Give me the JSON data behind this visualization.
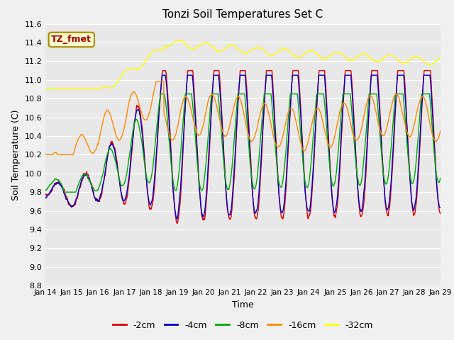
{
  "title": "Tonzi Soil Temperatures Set C",
  "xlabel": "Time",
  "ylabel": "Soil Temperature (C)",
  "ylim": [
    8.8,
    11.6
  ],
  "yticks": [
    8.8,
    9.0,
    9.2,
    9.4,
    9.6,
    9.8,
    10.0,
    10.2,
    10.4,
    10.6,
    10.8,
    11.0,
    11.2,
    11.4,
    11.6
  ],
  "xtick_labels": [
    "Jan 14",
    "Jan 15",
    "Jan 16",
    "Jan 17",
    "Jan 18",
    "Jan 19",
    "Jan 20",
    "Jan 21",
    "Jan 22",
    "Jan 23",
    "Jan 24",
    "Jan 25",
    "Jan 26",
    "Jan 27",
    "Jan 28",
    "Jan 29"
  ],
  "line_colors": {
    "-2cm": "#dd0000",
    "-4cm": "#0000cc",
    "-8cm": "#00aa00",
    "-16cm": "#ff8800",
    "-32cm": "#ffff00"
  },
  "annotation_text": "TZ_fmet",
  "annotation_color": "#aa0000",
  "annotation_bg": "#ffffcc",
  "fig_bg": "#f0f0f0",
  "plot_bg": "#e8e8e8"
}
